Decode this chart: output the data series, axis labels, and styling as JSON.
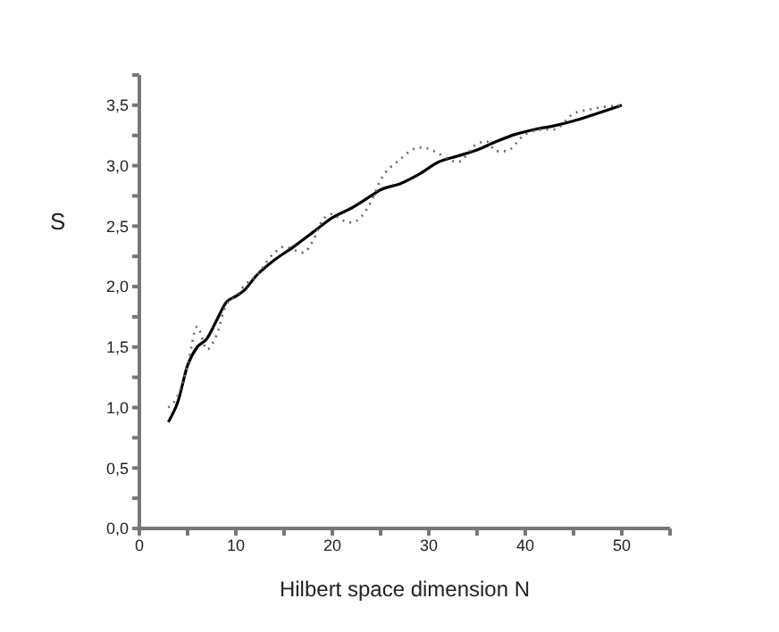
{
  "chart_data": {
    "type": "line",
    "xlabel": "Hilbert space dimension N",
    "ylabel": "S",
    "xlim": [
      0,
      55
    ],
    "ylim": [
      0,
      3.75
    ],
    "xticks": [
      0,
      {
        "value": 5,
        "label": null
      },
      10,
      {
        "value": 15,
        "label": null
      },
      20,
      {
        "value": 25,
        "label": null
      },
      30,
      {
        "value": 35,
        "label": null
      },
      40,
      {
        "value": 45,
        "label": null
      },
      50,
      {
        "value": 55,
        "label": null
      }
    ],
    "yticks": [
      {
        "value": 0,
        "label": "0,0"
      },
      {
        "value": 0.25,
        "label": null
      },
      {
        "value": 0.5,
        "label": "0,5"
      },
      {
        "value": 0.75,
        "label": null
      },
      {
        "value": 1,
        "label": "1,0"
      },
      {
        "value": 1.25,
        "label": null
      },
      {
        "value": 1.5,
        "label": "1,5"
      },
      {
        "value": 1.75,
        "label": null
      },
      {
        "value": 2,
        "label": "2,0"
      },
      {
        "value": 2.25,
        "label": null
      },
      {
        "value": 2.5,
        "label": "2,5"
      },
      {
        "value": 2.75,
        "label": null
      },
      {
        "value": 3,
        "label": "3,0"
      },
      {
        "value": 3.25,
        "label": null
      },
      {
        "value": 3.5,
        "label": "3,5"
      },
      {
        "value": 3.75,
        "label": null
      }
    ],
    "grid": false,
    "legend": false,
    "marker": "none",
    "series": [
      {
        "color": "#000000",
        "line_style": "solid",
        "x": [
          3,
          4,
          5,
          6,
          7,
          8,
          9,
          10,
          11,
          12,
          14,
          16,
          18,
          20,
          22,
          24,
          25,
          27,
          29,
          31,
          33,
          35,
          37,
          39,
          41,
          43,
          45,
          47,
          50
        ],
        "values": [
          0.88,
          1.05,
          1.35,
          1.5,
          1.57,
          1.72,
          1.87,
          1.92,
          1.98,
          2.08,
          2.22,
          2.33,
          2.45,
          2.57,
          2.65,
          2.75,
          2.8,
          2.85,
          2.93,
          3.03,
          3.08,
          3.13,
          3.2,
          3.26,
          3.3,
          3.33,
          3.37,
          3.42,
          3.5
        ]
      },
      {
        "color": "#666666",
        "line_style": "dotted",
        "x": [
          3,
          4,
          5,
          6,
          7,
          8,
          9,
          10,
          11,
          12,
          14,
          15,
          17,
          18,
          19,
          20,
          21,
          22,
          24,
          25,
          27,
          29,
          30,
          31,
          33,
          35,
          36,
          37,
          38,
          40,
          42,
          43,
          45,
          47,
          50
        ],
        "values": [
          1.0,
          1.1,
          1.35,
          1.67,
          1.48,
          1.6,
          1.85,
          1.92,
          2.02,
          2.08,
          2.28,
          2.33,
          2.28,
          2.38,
          2.55,
          2.6,
          2.55,
          2.53,
          2.7,
          2.88,
          3.05,
          3.15,
          3.14,
          3.1,
          3.03,
          3.18,
          3.2,
          3.12,
          3.12,
          3.26,
          3.3,
          3.3,
          3.43,
          3.47,
          3.5
        ]
      }
    ]
  }
}
